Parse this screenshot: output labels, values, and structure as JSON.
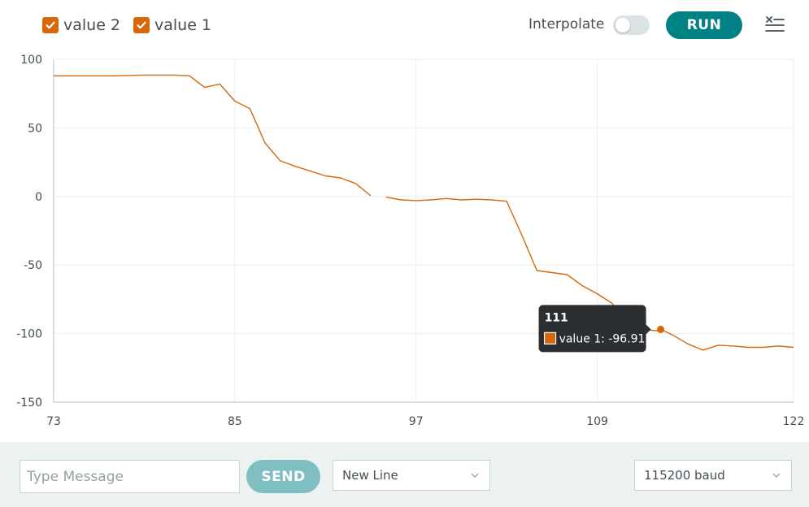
{
  "legend": {
    "items": [
      {
        "label": "value 2",
        "checked": true
      },
      {
        "label": "value 1",
        "checked": true
      }
    ]
  },
  "toolbar": {
    "interpolate_label": "Interpolate",
    "interpolate_on": false,
    "run_label": "RUN",
    "clear_icon": "clear-list-icon"
  },
  "colors": {
    "series": "#d6670a",
    "accent": "#008184",
    "send": "#7fbfc1",
    "tooltip_bg": "#2b2f31",
    "grid": "#ebeef0",
    "axis": "#b6bdc0"
  },
  "chart_data": {
    "type": "line",
    "xlim": [
      73,
      122
    ],
    "ylim": [
      -150,
      100
    ],
    "x_ticks": [
      "73",
      "85",
      "97",
      "109",
      "122"
    ],
    "y_ticks": [
      "100",
      "50",
      "0",
      "-50",
      "-100",
      "-150"
    ],
    "grid": true,
    "series": [
      {
        "name": "value 1",
        "segments": [
          [
            [
              73,
              88
            ],
            [
              75,
              88
            ],
            [
              77,
              88
            ],
            [
              79,
              88.5
            ],
            [
              81,
              88.5
            ],
            [
              82,
              88
            ],
            [
              83,
              79.5
            ],
            [
              84,
              82
            ],
            [
              85,
              69.5
            ],
            [
              86,
              64
            ],
            [
              87,
              39
            ],
            [
              88,
              26
            ],
            [
              89,
              22
            ],
            [
              90,
              18.5
            ],
            [
              91,
              15
            ],
            [
              92,
              13.5
            ],
            [
              93,
              9.5
            ],
            [
              94,
              0.5
            ]
          ],
          [
            [
              95,
              -0.5
            ],
            [
              96,
              -2.5
            ],
            [
              97,
              -3
            ],
            [
              98,
              -2.5
            ],
            [
              99,
              -1.5
            ],
            [
              100,
              -2.5
            ],
            [
              101,
              -2
            ],
            [
              102,
              -2.5
            ],
            [
              103,
              -3.5
            ],
            [
              104,
              -28
            ],
            [
              105,
              -54
            ],
            [
              106,
              -55.5
            ],
            [
              107,
              -57
            ],
            [
              108,
              -65
            ],
            [
              109,
              -71
            ],
            [
              110,
              -78
            ],
            [
              111,
              -96
            ],
            [
              112,
              -97
            ],
            [
              113,
              -98
            ],
            [
              113.2,
              -96.9
            ],
            [
              114,
              -101
            ],
            [
              115,
              -107.5
            ],
            [
              116,
              -112
            ],
            [
              117,
              -108.5
            ],
            [
              118,
              -109
            ],
            [
              119,
              -110
            ],
            [
              120,
              -110
            ],
            [
              121,
              -109
            ],
            [
              122,
              -110
            ],
            [
              123,
              -109.5
            ],
            [
              124,
              -109.5
            ]
          ]
        ]
      }
    ],
    "tooltip": {
      "title": "111",
      "text": "value 1: -96.91",
      "point_x": 113.2,
      "point_y": -96.91
    }
  },
  "footer": {
    "message_placeholder": "Type Message",
    "message_value": "",
    "send_label": "SEND",
    "line_ending": "New Line",
    "baud": "115200 baud"
  }
}
